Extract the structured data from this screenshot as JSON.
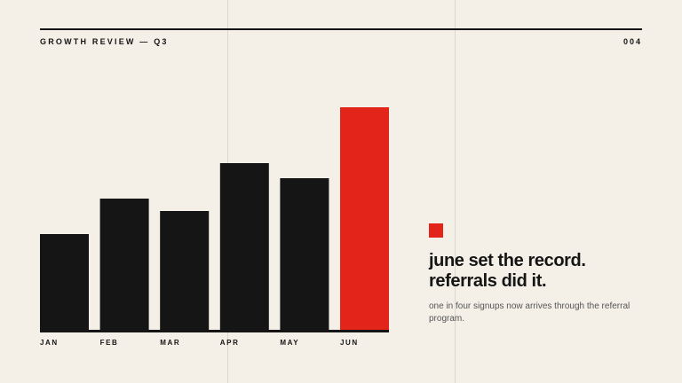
{
  "header": {
    "title": "GROWTH REVIEW — Q3",
    "page": "004"
  },
  "chart_data": {
    "type": "bar",
    "categories": [
      "JAN",
      "FEB",
      "MAR",
      "APR",
      "MAY",
      "JUN"
    ],
    "values": [
      109,
      149,
      135,
      189,
      172,
      252
    ],
    "colors": [
      "#151515",
      "#151515",
      "#151515",
      "#151515",
      "#151515",
      "#e2241a"
    ],
    "ylim": [
      0,
      260
    ]
  },
  "callout": {
    "headline": [
      "june set the record.",
      "referrals did it."
    ],
    "body": "one in four signups now arrives through the referral program.",
    "color": "#e2241a"
  }
}
